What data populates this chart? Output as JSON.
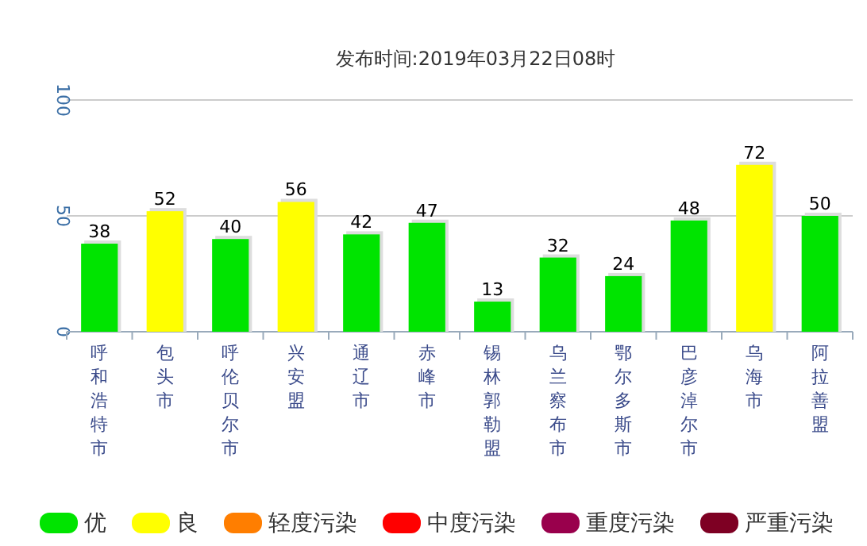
{
  "chart_data": {
    "type": "bar",
    "title": "发布时间:2019年03月22日08时",
    "categories": [
      "呼和浩特市",
      "包头市",
      "呼伦贝尔市",
      "兴安盟",
      "通辽市",
      "赤峰市",
      "锡林郭勒盟",
      "乌兰察布市",
      "鄂尔多斯市",
      "巴彦淖尔市",
      "乌海市",
      "阿拉善盟"
    ],
    "stacked": true,
    "series": [
      {
        "name": "优",
        "color": "#00e400",
        "values": [
          38,
          null,
          40,
          null,
          42,
          47,
          13,
          32,
          24,
          48,
          null,
          50
        ]
      },
      {
        "name": "良",
        "color": "#ffff00",
        "values": [
          null,
          52,
          null,
          56,
          null,
          null,
          null,
          null,
          null,
          null,
          72,
          null
        ]
      },
      {
        "name": "轻度污染",
        "color": "#ff7e00",
        "values": [
          null,
          null,
          null,
          null,
          null,
          null,
          null,
          null,
          null,
          null,
          null,
          null
        ]
      },
      {
        "name": "中度污染",
        "color": "#ff0000",
        "values": [
          null,
          null,
          null,
          null,
          null,
          null,
          null,
          null,
          null,
          null,
          null,
          null
        ]
      },
      {
        "name": "重度污染",
        "color": "#99004c",
        "values": [
          null,
          null,
          null,
          null,
          null,
          null,
          null,
          null,
          null,
          null,
          null,
          null
        ]
      },
      {
        "name": "严重污染",
        "color": "#7e0023",
        "values": [
          null,
          null,
          null,
          null,
          null,
          null,
          null,
          null,
          null,
          null,
          null,
          null
        ]
      }
    ],
    "ylim": [
      0,
      100
    ],
    "yticks": [
      0,
      50,
      100
    ],
    "grid": "y",
    "data_labels": true,
    "legend": "bottom"
  }
}
